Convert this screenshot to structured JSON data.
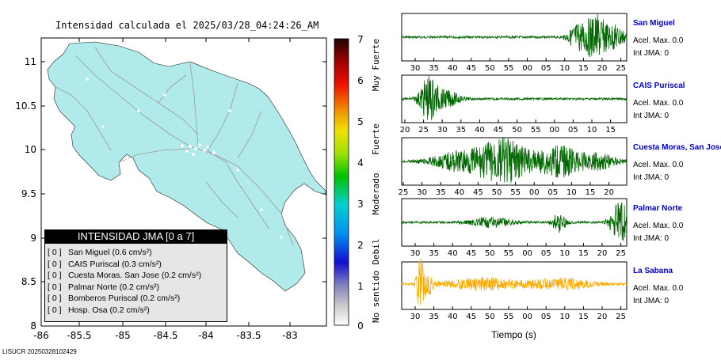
{
  "map": {
    "title": "Intensidad calculada el 2025/03/28_04:24:26_AM",
    "ylabels": [
      "11",
      "10.5",
      "10",
      "9.5",
      "9",
      "8.5",
      "8"
    ],
    "xlabels": [
      "-86",
      "-85.5",
      "-85",
      "-84.5",
      "-84",
      "-83.5",
      "-83"
    ],
    "land_color": "#b0eaea",
    "water_color": "#ffffff"
  },
  "colorbar": {
    "ticks": [
      "7",
      "6",
      "5",
      "4",
      "3",
      "2",
      "1",
      "0"
    ],
    "categories": [
      "Muy Fuerte",
      "Fuerte",
      "Moderado",
      "Debil",
      "No sentido"
    ]
  },
  "legend": {
    "title": "INTENSIDAD JMA [0 a 7]",
    "items": [
      {
        "int": "[ 0 ]",
        "name": "San Miguel",
        "value": "(0.6 cm/s²)"
      },
      {
        "int": "[ 0 ]",
        "name": "CAIS Puriscal",
        "value": "(0.3 cm/s²)"
      },
      {
        "int": "[ 0 ]",
        "name": "Cuesta Moras. San Jose",
        "value": "(0.2 cm/s²)"
      },
      {
        "int": "[ 0 ]",
        "name": "Palmar Norte",
        "value": "(0.2 cm/s²)"
      },
      {
        "int": "[ 0 ]",
        "name": "Bomberos Puriscal",
        "value": "(0.2 cm/s²)"
      },
      {
        "int": "[ 0 ]",
        "name": "Hosp. Osa",
        "value": "(0.2 cm/s²)"
      }
    ]
  },
  "footer": "LISUCR 20250328102429",
  "stations": [
    {
      "name": "San Miguel",
      "acel": "Acel. Max. 0.0",
      "int": "Int JMA: 0",
      "color": "#006600",
      "ticks": [
        "30",
        "35",
        "40",
        "45",
        "50",
        "55",
        "00",
        "05",
        "10",
        "15",
        "20",
        "25"
      ]
    },
    {
      "name": "CAIS Puriscal",
      "acel": "Acel. Max. 0.0",
      "int": "Int JMA: 0",
      "color": "#006600",
      "ticks": [
        "20",
        "25",
        "30",
        "35",
        "40",
        "45",
        "50",
        "55",
        "00",
        "05",
        "10",
        "15"
      ]
    },
    {
      "name": "Cuesta Moras, San Jose",
      "acel": "Acel. Max. 0.0",
      "int": "Int JMA: 0",
      "color": "#006600",
      "ticks": [
        "25",
        "30",
        "35",
        "40",
        "45",
        "50",
        "55",
        "00",
        "05",
        "10",
        "15",
        "20"
      ]
    },
    {
      "name": "Palmar Norte",
      "acel": "Acel. Max. 0.0",
      "int": "Int JMA: 0",
      "color": "#006600",
      "ticks": [
        "30",
        "35",
        "40",
        "45",
        "50",
        "55",
        "00",
        "05",
        "10",
        "15",
        "20",
        "25"
      ]
    },
    {
      "name": "La Sabana",
      "acel": "Acel. Max. 0.0",
      "int": "Int JMA: 0",
      "color": "#ffaa00",
      "ticks": [
        "30",
        "35",
        "40",
        "45",
        "50",
        "55",
        "00",
        "05",
        "10",
        "15",
        "20",
        "25"
      ]
    }
  ],
  "time_axis_label": "Tiempo (s)"
}
